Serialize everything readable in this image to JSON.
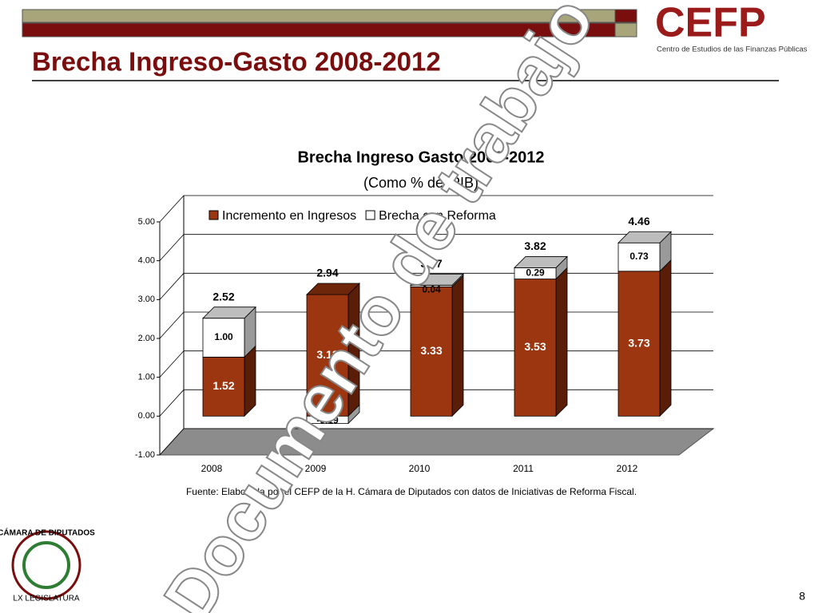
{
  "header": {
    "title": "Brecha Ingreso-Gasto 2008-2012"
  },
  "logo": {
    "name": "CEFP",
    "subtitle": "Centro de Estudios de las Finanzas Públicas"
  },
  "footer_logo": {
    "line1": "CÁMARA DE DIPUTADOS",
    "line2": "LX LEGISLATURA"
  },
  "page_number": "8",
  "watermark": "Documento de trabajo",
  "chart_data": {
    "type": "stacked-bar-3d",
    "title": "Brecha Ingreso Gasto 2008-2012",
    "subtitle": "(Como % del PIB)",
    "categories": [
      "2008",
      "2009",
      "2010",
      "2011",
      "2012"
    ],
    "series": [
      {
        "name": "Incremento en Ingresos",
        "color": "#9c3611",
        "values": [
          1.52,
          3.13,
          3.33,
          3.53,
          3.73
        ],
        "value_labels": [
          "1.52",
          "3.13",
          "3.33",
          "3.53",
          "3.73"
        ]
      },
      {
        "name": "Brecha con Reforma",
        "color": "#ffffff",
        "values": [
          1.0,
          -0.19,
          0.04,
          0.29,
          0.73
        ],
        "value_labels": [
          "1.00",
          "-0.19",
          "0.04",
          "0.29",
          "0.73"
        ]
      }
    ],
    "totals": [
      2.52,
      2.94,
      3.37,
      3.82,
      4.46
    ],
    "ylim": [
      -1,
      5
    ],
    "yticks": [
      {
        "value": -1,
        "label": "-1.00"
      },
      {
        "value": 0,
        "label": "0.00"
      },
      {
        "value": 1,
        "label": "1.00"
      },
      {
        "value": 2,
        "label": "2.00"
      },
      {
        "value": 3,
        "label": "3.00"
      },
      {
        "value": 4,
        "label": "4.00"
      },
      {
        "value": 5,
        "label": "5.00"
      }
    ],
    "grid": true,
    "legend": "top",
    "source": "Fuente: Elaborada por el CEFP de la H. Cámara de Diputados con datos de Iniciativas de Reforma Fiscal."
  }
}
